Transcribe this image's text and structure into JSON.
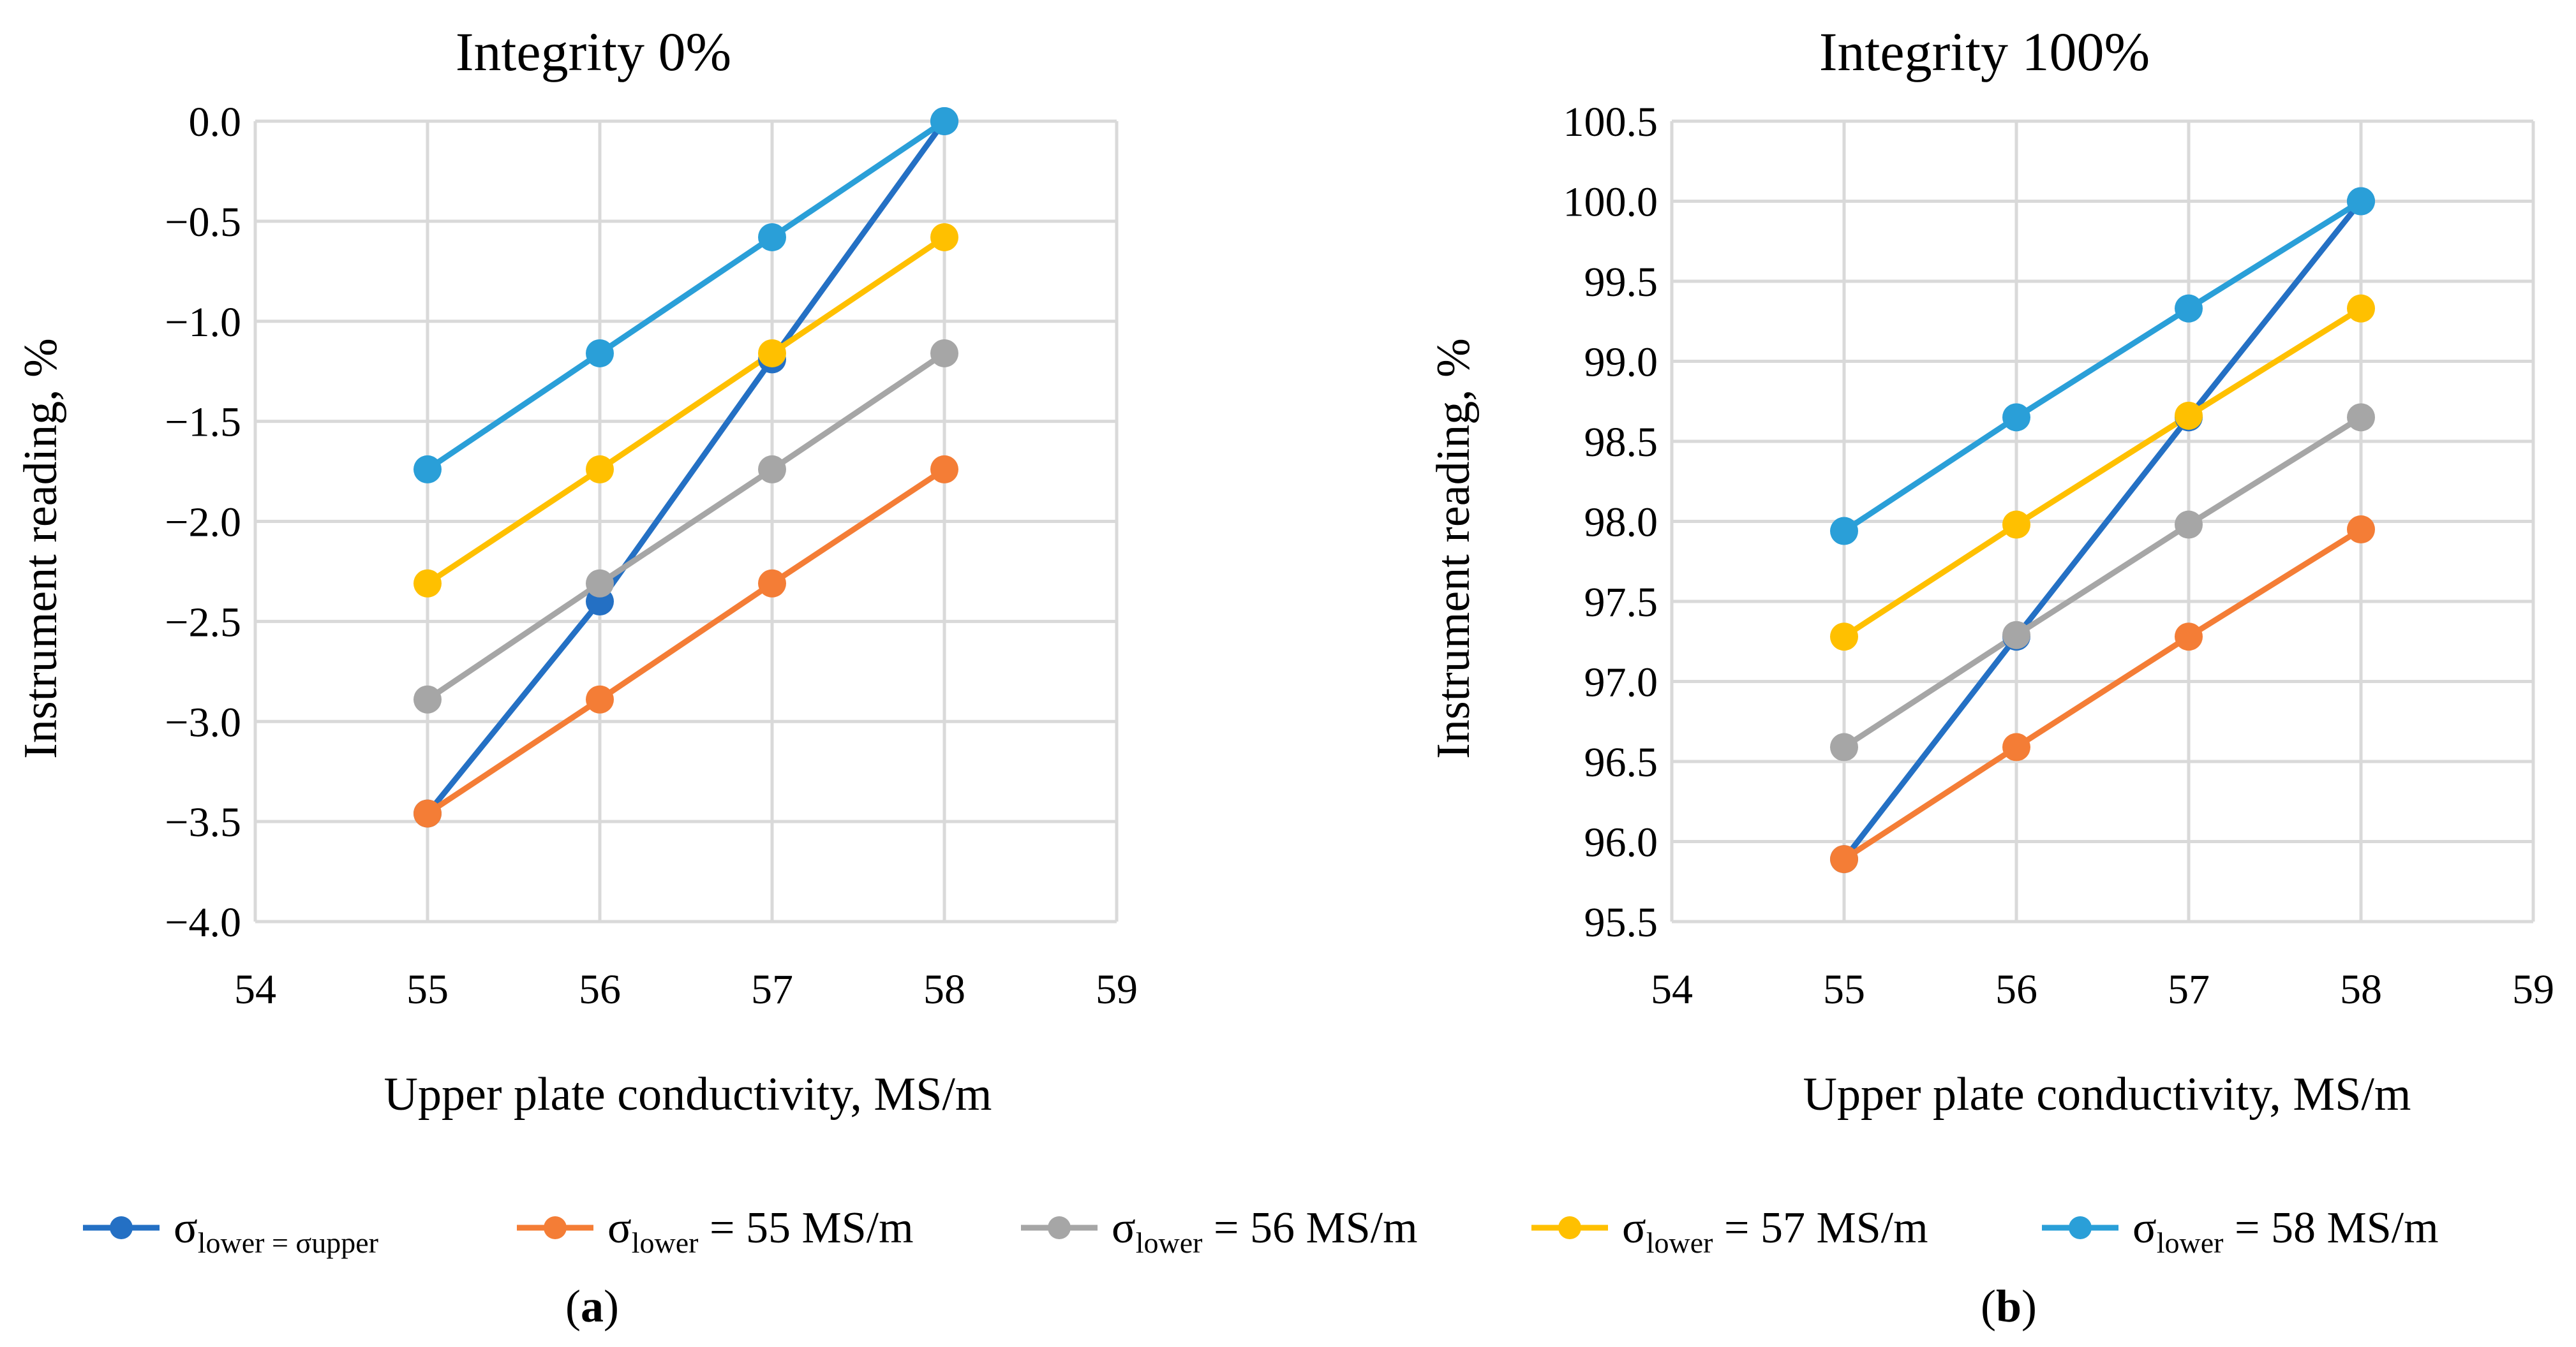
{
  "chart_data": [
    {
      "type": "line",
      "title": "Integrity 0%",
      "xlabel": "Upper plate conductivity, MS/m",
      "ylabel": "Instrument reading, %",
      "xlim": [
        54,
        59
      ],
      "ylim": [
        -4.0,
        0.0
      ],
      "xticks": [
        54,
        55,
        56,
        57,
        58,
        59
      ],
      "xtick_labels": [
        "54",
        "55",
        "56",
        "57",
        "58",
        "59"
      ],
      "yticks": [
        0.0,
        -0.5,
        -1.0,
        -1.5,
        -2.0,
        -2.5,
        -3.0,
        -3.5,
        -4.0
      ],
      "ytick_labels": [
        "0.0",
        "−0.5",
        "−1.0",
        "−1.5",
        "−2.0",
        "−2.5",
        "−3.0",
        "−3.5",
        "−4.0"
      ],
      "grid": true,
      "panel_label": "a",
      "x": [
        55,
        56,
        57,
        58
      ],
      "series": [
        {
          "key": "s_eq",
          "values": [
            -3.46,
            -2.4,
            -1.19,
            0.0
          ]
        },
        {
          "key": "s55",
          "values": [
            -3.46,
            -2.89,
            -2.31,
            -1.74
          ]
        },
        {
          "key": "s56",
          "values": [
            -2.89,
            -2.31,
            -1.74,
            -1.16
          ]
        },
        {
          "key": "s57",
          "values": [
            -2.31,
            -1.74,
            -1.16,
            -0.58
          ]
        },
        {
          "key": "s58",
          "values": [
            -1.74,
            -1.16,
            -0.58,
            0.0
          ]
        }
      ]
    },
    {
      "type": "line",
      "title": "Integrity 100%",
      "xlabel": "Upper plate conductivity, MS/m",
      "ylabel": "Instrument reading, %",
      "xlim": [
        54,
        59
      ],
      "ylim": [
        95.5,
        100.5
      ],
      "xticks": [
        54,
        55,
        56,
        57,
        58,
        59
      ],
      "xtick_labels": [
        "54",
        "55",
        "56",
        "57",
        "58",
        "59"
      ],
      "yticks": [
        100.5,
        100.0,
        99.5,
        99.0,
        98.5,
        98.0,
        97.5,
        97.0,
        96.5,
        96.0,
        95.5
      ],
      "ytick_labels": [
        "100.5",
        "100.0",
        "99.5",
        "99.0",
        "98.5",
        "98.0",
        "97.5",
        "97.0",
        "96.5",
        "96.0",
        "95.5"
      ],
      "grid": true,
      "panel_label": "b",
      "x": [
        55,
        56,
        57,
        58
      ],
      "series": [
        {
          "key": "s_eq",
          "values": [
            95.89,
            97.28,
            98.65,
            100.0
          ]
        },
        {
          "key": "s55",
          "values": [
            95.89,
            96.59,
            97.28,
            97.95
          ]
        },
        {
          "key": "s56",
          "values": [
            96.59,
            97.29,
            97.98,
            98.65
          ]
        },
        {
          "key": "s57",
          "values": [
            97.28,
            97.98,
            98.66,
            99.33
          ]
        },
        {
          "key": "s58",
          "values": [
            97.94,
            98.65,
            99.33,
            100.0
          ]
        }
      ]
    }
  ],
  "legend": {
    "placement": "bottom",
    "items": [
      {
        "key": "s_eq",
        "symbol": "σ",
        "sub": "lower = σupper",
        "suffix": "",
        "color": "#2470c4"
      },
      {
        "key": "s55",
        "symbol": "σ",
        "sub": "lower",
        "suffix": " = 55 MS/m",
        "color": "#f47d36"
      },
      {
        "key": "s56",
        "symbol": "σ",
        "sub": "lower",
        "suffix": " = 56 MS/m",
        "color": "#a6a6a6"
      },
      {
        "key": "s57",
        "symbol": "σ",
        "sub": "lower",
        "suffix": " = 57 MS/m",
        "color": "#ffc000"
      },
      {
        "key": "s58",
        "symbol": "σ",
        "sub": "lower",
        "suffix": " = 58 MS/m",
        "color": "#2a9fd8"
      }
    ]
  }
}
